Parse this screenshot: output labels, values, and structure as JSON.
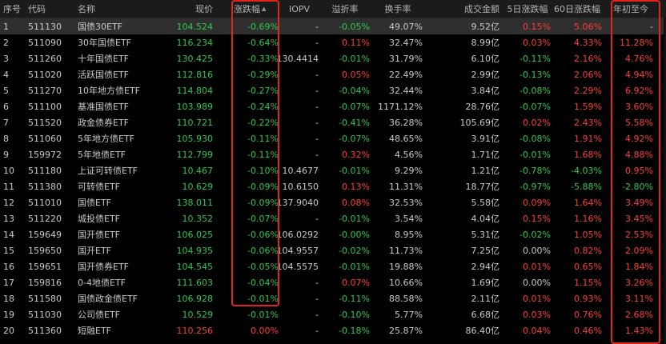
{
  "columns": {
    "idx": "序号",
    "code": "代码",
    "name": "名称",
    "price": "现价",
    "change": "涨跌幅",
    "iopv": "IOPV",
    "premium": "溢折率",
    "turnover": "换手率",
    "amount": "成交金额",
    "chg5d": "5日涨跌幅",
    "chg60d": "60日涨跌幅",
    "ytd": "年初至今"
  },
  "sort": {
    "column": "change",
    "icon": "sort-asc-icon"
  },
  "colors": {
    "up": "#ff3b30",
    "down": "#2dc84a",
    "highlight": "#e0261c",
    "header_bg": "#1b1b1b",
    "selected_row": "#2f2f2f"
  },
  "rows": [
    {
      "idx": "1",
      "code": "511130",
      "name": "国债30ETF",
      "price": "104.524",
      "change": "-0.69%",
      "iopv": "-",
      "premium": "-0.05%",
      "turnover": "49.07%",
      "amount": "9.52亿",
      "chg5d": "0.15%",
      "chg60d": "5.06%",
      "ytd": "-",
      "c_price": "down",
      "c_change": "down",
      "c_premium": "down",
      "c_chg5d": "up",
      "c_chg60d": "up",
      "c_ytd": "neu"
    },
    {
      "idx": "2",
      "code": "511090",
      "name": "30年国债ETF",
      "price": "116.234",
      "change": "-0.64%",
      "iopv": "-",
      "premium": "0.11%",
      "turnover": "32.47%",
      "amount": "8.99亿",
      "chg5d": "0.03%",
      "chg60d": "4.33%",
      "ytd": "11.28%",
      "c_price": "down",
      "c_change": "down",
      "c_premium": "up",
      "c_chg5d": "up",
      "c_chg60d": "up",
      "c_ytd": "up"
    },
    {
      "idx": "3",
      "code": "511260",
      "name": "十年国债ETF",
      "price": "130.425",
      "change": "-0.33%",
      "iopv": "130.4414",
      "premium": "-0.01%",
      "turnover": "31.79%",
      "amount": "6.10亿",
      "chg5d": "-0.11%",
      "chg60d": "2.16%",
      "ytd": "4.76%",
      "c_price": "down",
      "c_change": "down",
      "c_premium": "down",
      "c_chg5d": "down",
      "c_chg60d": "up",
      "c_ytd": "up"
    },
    {
      "idx": "4",
      "code": "511020",
      "name": "活跃国债ETF",
      "price": "112.816",
      "change": "-0.29%",
      "iopv": "-",
      "premium": "0.05%",
      "turnover": "22.49%",
      "amount": "2.99亿",
      "chg5d": "-0.13%",
      "chg60d": "2.06%",
      "ytd": "4.94%",
      "c_price": "down",
      "c_change": "down",
      "c_premium": "up",
      "c_chg5d": "down",
      "c_chg60d": "up",
      "c_ytd": "up"
    },
    {
      "idx": "5",
      "code": "511270",
      "name": "10年地方债ETF",
      "price": "114.804",
      "change": "-0.27%",
      "iopv": "-",
      "premium": "-0.04%",
      "turnover": "32.44%",
      "amount": "3.84亿",
      "chg5d": "-0.08%",
      "chg60d": "2.29%",
      "ytd": "6.92%",
      "c_price": "down",
      "c_change": "down",
      "c_premium": "down",
      "c_chg5d": "down",
      "c_chg60d": "up",
      "c_ytd": "up"
    },
    {
      "idx": "6",
      "code": "511100",
      "name": "基准国债ETF",
      "price": "103.989",
      "change": "-0.24%",
      "iopv": "-",
      "premium": "-0.07%",
      "turnover": "1171.12%",
      "amount": "28.76亿",
      "chg5d": "-0.07%",
      "chg60d": "1.59%",
      "ytd": "3.60%",
      "c_price": "down",
      "c_change": "down",
      "c_premium": "down",
      "c_chg5d": "down",
      "c_chg60d": "up",
      "c_ytd": "up"
    },
    {
      "idx": "7",
      "code": "511520",
      "name": "政金债券ETF",
      "price": "110.721",
      "change": "-0.22%",
      "iopv": "-",
      "premium": "-0.41%",
      "turnover": "36.28%",
      "amount": "105.69亿",
      "chg5d": "0.02%",
      "chg60d": "2.43%",
      "ytd": "5.58%",
      "c_price": "down",
      "c_change": "down",
      "c_premium": "down",
      "c_chg5d": "up",
      "c_chg60d": "up",
      "c_ytd": "up"
    },
    {
      "idx": "8",
      "code": "511060",
      "name": "5年地方债ETF",
      "price": "105.930",
      "change": "-0.11%",
      "iopv": "-",
      "premium": "-0.07%",
      "turnover": "48.65%",
      "amount": "3.91亿",
      "chg5d": "-0.08%",
      "chg60d": "1.91%",
      "ytd": "4.92%",
      "c_price": "down",
      "c_change": "down",
      "c_premium": "down",
      "c_chg5d": "down",
      "c_chg60d": "up",
      "c_ytd": "up"
    },
    {
      "idx": "9",
      "code": "159972",
      "name": "5年地债ETF",
      "price": "112.799",
      "change": "-0.11%",
      "iopv": "-",
      "premium": "0.32%",
      "turnover": "4.56%",
      "amount": "1.71亿",
      "chg5d": "-0.01%",
      "chg60d": "1.68%",
      "ytd": "4.88%",
      "c_price": "down",
      "c_change": "down",
      "c_premium": "up",
      "c_chg5d": "down",
      "c_chg60d": "up",
      "c_ytd": "up"
    },
    {
      "idx": "10",
      "code": "511180",
      "name": "上证可转债ETF",
      "price": "10.467",
      "change": "-0.10%",
      "iopv": "10.4677",
      "premium": "-0.01%",
      "turnover": "9.29%",
      "amount": "1.21亿",
      "chg5d": "-0.78%",
      "chg60d": "-4.03%",
      "ytd": "0.95%",
      "c_price": "down",
      "c_change": "down",
      "c_premium": "down",
      "c_chg5d": "down",
      "c_chg60d": "down",
      "c_ytd": "up"
    },
    {
      "idx": "11",
      "code": "511380",
      "name": "可转债ETF",
      "price": "10.629",
      "change": "-0.09%",
      "iopv": "10.6150",
      "premium": "0.13%",
      "turnover": "11.31%",
      "amount": "18.77亿",
      "chg5d": "-0.97%",
      "chg60d": "-5.88%",
      "ytd": "-2.80%",
      "c_price": "down",
      "c_change": "down",
      "c_premium": "up",
      "c_chg5d": "down",
      "c_chg60d": "down",
      "c_ytd": "down"
    },
    {
      "idx": "12",
      "code": "511010",
      "name": "国债ETF",
      "price": "138.011",
      "change": "-0.09%",
      "iopv": "137.9040",
      "premium": "0.08%",
      "turnover": "32.53%",
      "amount": "5.58亿",
      "chg5d": "0.09%",
      "chg60d": "1.64%",
      "ytd": "3.49%",
      "c_price": "down",
      "c_change": "down",
      "c_premium": "up",
      "c_chg5d": "up",
      "c_chg60d": "up",
      "c_ytd": "up"
    },
    {
      "idx": "13",
      "code": "511220",
      "name": "城投债ETF",
      "price": "10.352",
      "change": "-0.07%",
      "iopv": "-",
      "premium": "-0.01%",
      "turnover": "3.54%",
      "amount": "4.04亿",
      "chg5d": "0.15%",
      "chg60d": "1.16%",
      "ytd": "3.45%",
      "c_price": "down",
      "c_change": "down",
      "c_premium": "down",
      "c_chg5d": "up",
      "c_chg60d": "up",
      "c_ytd": "up"
    },
    {
      "idx": "14",
      "code": "159649",
      "name": "国开债ETF",
      "price": "106.025",
      "change": "-0.06%",
      "iopv": "106.0292",
      "premium": "-0.00%",
      "turnover": "8.95%",
      "amount": "5.31亿",
      "chg5d": "-0.02%",
      "chg60d": "1.05%",
      "ytd": "2.53%",
      "c_price": "down",
      "c_change": "down",
      "c_premium": "down",
      "c_chg5d": "down",
      "c_chg60d": "up",
      "c_ytd": "up"
    },
    {
      "idx": "15",
      "code": "159650",
      "name": "国开ETF",
      "price": "104.935",
      "change": "-0.06%",
      "iopv": "104.9557",
      "premium": "-0.02%",
      "turnover": "11.73%",
      "amount": "7.25亿",
      "chg5d": "0.00%",
      "chg60d": "0.82%",
      "ytd": "2.09%",
      "c_price": "down",
      "c_change": "down",
      "c_premium": "down",
      "c_chg5d": "flat",
      "c_chg60d": "up",
      "c_ytd": "up"
    },
    {
      "idx": "16",
      "code": "159651",
      "name": "国开债券ETF",
      "price": "104.545",
      "change": "-0.05%",
      "iopv": "104.5575",
      "premium": "-0.01%",
      "turnover": "19.88%",
      "amount": "2.94亿",
      "chg5d": "0.01%",
      "chg60d": "0.65%",
      "ytd": "1.84%",
      "c_price": "down",
      "c_change": "down",
      "c_premium": "down",
      "c_chg5d": "up",
      "c_chg60d": "up",
      "c_ytd": "up"
    },
    {
      "idx": "17",
      "code": "159816",
      "name": "0-4地债ETF",
      "price": "111.603",
      "change": "-0.04%",
      "iopv": "-",
      "premium": "0.07%",
      "turnover": "10.66%",
      "amount": "1.69亿",
      "chg5d": "0.00%",
      "chg60d": "1.15%",
      "ytd": "3.26%",
      "c_price": "down",
      "c_change": "down",
      "c_premium": "up",
      "c_chg5d": "flat",
      "c_chg60d": "up",
      "c_ytd": "up"
    },
    {
      "idx": "18",
      "code": "511580",
      "name": "国债政金债ETF",
      "price": "106.928",
      "change": "-0.01%",
      "iopv": "-",
      "premium": "-0.11%",
      "turnover": "88.58%",
      "amount": "2.11亿",
      "chg5d": "0.01%",
      "chg60d": "0.93%",
      "ytd": "3.11%",
      "c_price": "down",
      "c_change": "down",
      "c_premium": "down",
      "c_chg5d": "up",
      "c_chg60d": "up",
      "c_ytd": "up"
    },
    {
      "idx": "19",
      "code": "511030",
      "name": "公司债ETF",
      "price": "10.529",
      "change": "-0.01%",
      "iopv": "-",
      "premium": "-0.10%",
      "turnover": "5.77%",
      "amount": "6.68亿",
      "chg5d": "0.03%",
      "chg60d": "0.76%",
      "ytd": "2.68%",
      "c_price": "down",
      "c_change": "down",
      "c_premium": "down",
      "c_chg5d": "up",
      "c_chg60d": "up",
      "c_ytd": "up"
    },
    {
      "idx": "20",
      "code": "511360",
      "name": "短融ETF",
      "price": "110.256",
      "change": "0.00%",
      "iopv": "-",
      "premium": "-0.18%",
      "turnover": "25.87%",
      "amount": "86.40亿",
      "chg5d": "0.04%",
      "chg60d": "0.46%",
      "ytd": "1.43%",
      "c_price": "up",
      "c_change": "up",
      "c_premium": "down",
      "c_chg5d": "up",
      "c_chg60d": "up",
      "c_ytd": "up"
    }
  ]
}
